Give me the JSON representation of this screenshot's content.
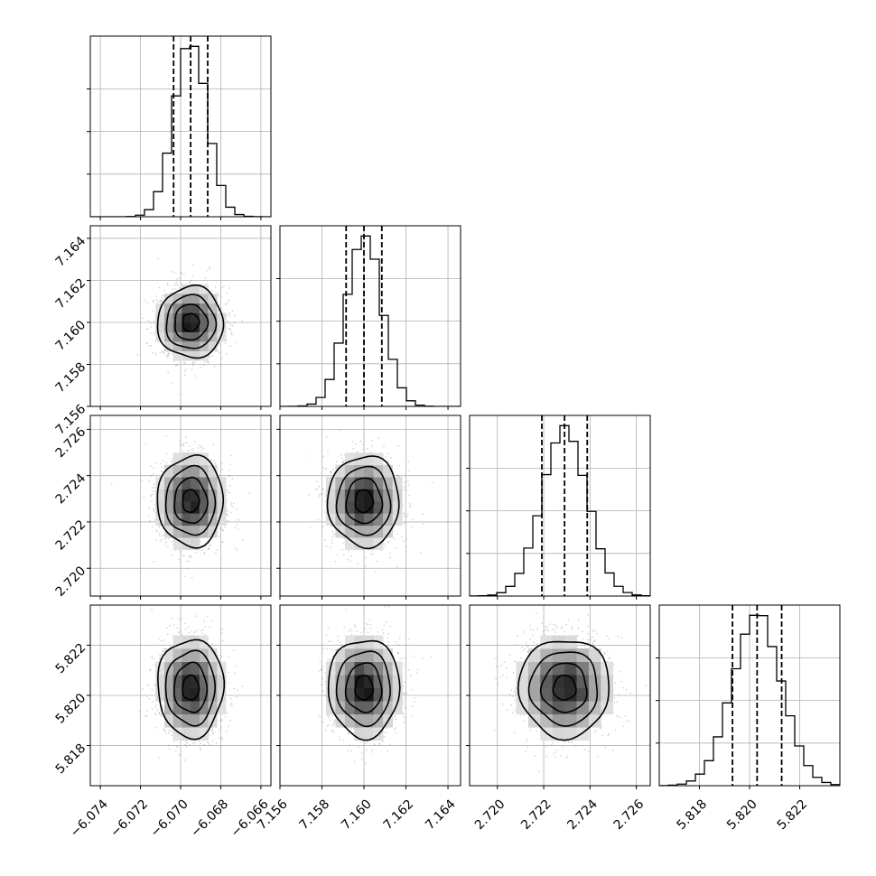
{
  "chart_data": {
    "type": "corner",
    "dims": [
      {
        "mean": -6.0695,
        "sigma": 0.00082,
        "range": [
          -6.0745,
          -6.0655
        ],
        "ticks": [
          "−6.074",
          "−6.072",
          "−6.070",
          "−6.068",
          "−6.066"
        ],
        "tick_values": [
          -6.074,
          -6.072,
          -6.07,
          -6.068,
          -6.066
        ],
        "quantiles": [
          -6.07035,
          -6.0695,
          -6.06865
        ]
      },
      {
        "mean": 7.16,
        "sigma": 0.00085,
        "range": [
          7.156,
          7.1646
        ],
        "ticks": [
          "7.156",
          "7.158",
          "7.160",
          "7.162",
          "7.164"
        ],
        "tick_values": [
          7.156,
          7.158,
          7.16,
          7.162,
          7.164
        ],
        "quantiles": [
          7.15915,
          7.16,
          7.16085
        ]
      },
      {
        "mean": 2.7229,
        "sigma": 0.00098,
        "range": [
          2.7188,
          2.7266
        ],
        "ticks": [
          "2.720",
          "2.722",
          "2.724",
          "2.726"
        ],
        "tick_values": [
          2.72,
          2.722,
          2.724,
          2.726
        ],
        "quantiles": [
          2.72192,
          2.7229,
          2.72388
        ]
      },
      {
        "mean": 5.8203,
        "sigma": 0.00098,
        "range": [
          5.8164,
          5.8236
        ],
        "ticks": [
          "5.818",
          "5.820",
          "5.822"
        ],
        "tick_values": [
          5.818,
          5.82,
          5.822
        ],
        "quantiles": [
          5.81932,
          5.8203,
          5.82128
        ]
      }
    ],
    "histogram_bins": 20,
    "contour_levels_sigma": [
      0.5,
      1.0,
      1.5,
      2.0
    ],
    "grid": true,
    "colors": {
      "ink": "#000000",
      "points": "#8c8c8c",
      "grid": "#b0b0b0"
    }
  }
}
